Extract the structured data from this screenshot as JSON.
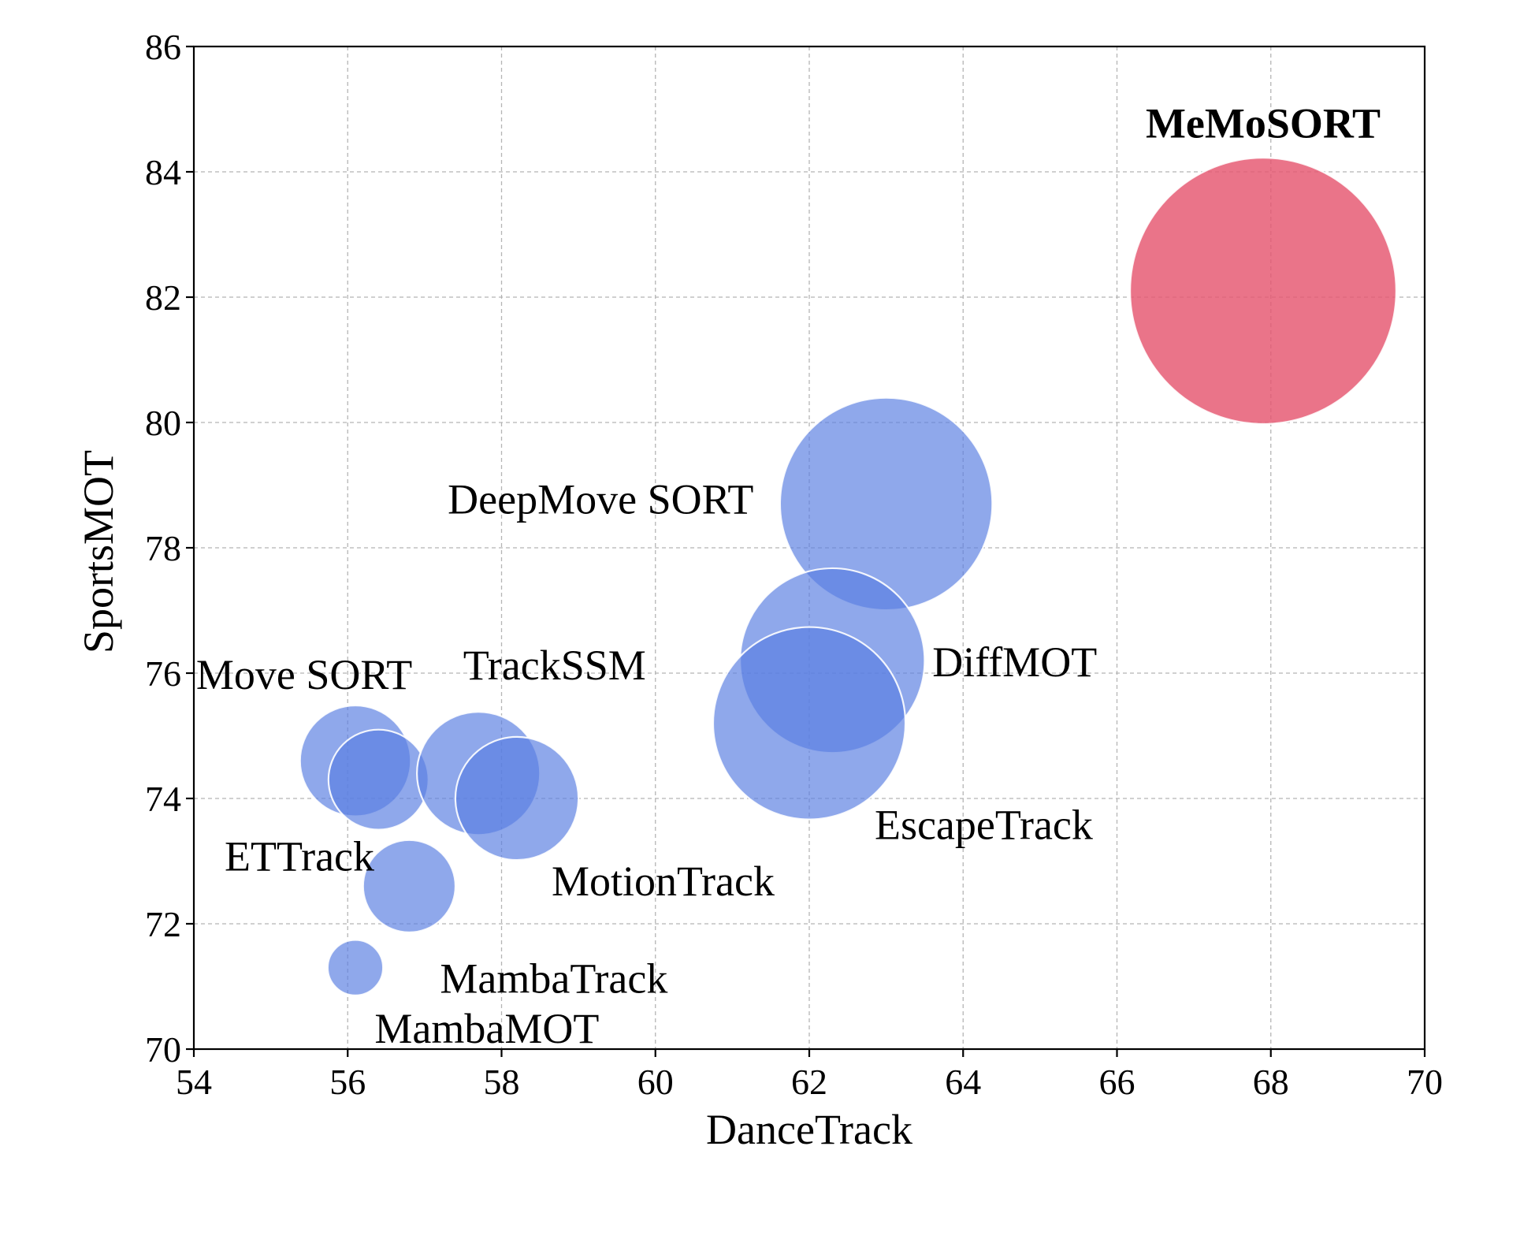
{
  "chart_data": {
    "type": "scatter",
    "title": "",
    "xlabel": "DanceTrack",
    "ylabel": "SportsMOT",
    "xlim": [
      54,
      70
    ],
    "ylim": [
      70,
      86
    ],
    "xticks": [
      "54",
      "56",
      "58",
      "60",
      "62",
      "64",
      "66",
      "68",
      "70"
    ],
    "yticks": [
      "70",
      "72",
      "74",
      "76",
      "78",
      "80",
      "82",
      "84",
      "86"
    ],
    "grid": true,
    "legend": "none",
    "marker": "bubble",
    "colors": {
      "baseline": "#5a7fe2",
      "highlight": "#e5566f"
    },
    "bubble_size_unit": "relative radius in DanceTrack axis units",
    "points": [
      {
        "label": "Move SORT",
        "x": 56.1,
        "y": 74.6,
        "size": 0.72,
        "highlight": false
      },
      {
        "label": "ETTrack",
        "x": 56.4,
        "y": 74.3,
        "size": 0.65,
        "highlight": false
      },
      {
        "label": "TrackSSM",
        "x": 57.7,
        "y": 74.4,
        "size": 0.8,
        "highlight": false
      },
      {
        "label": "MotionTrack",
        "x": 58.2,
        "y": 74.0,
        "size": 0.8,
        "highlight": false
      },
      {
        "label": "MambaTrack",
        "x": 56.8,
        "y": 72.6,
        "size": 0.6,
        "highlight": false
      },
      {
        "label": "MambaMOT",
        "x": 56.1,
        "y": 71.3,
        "size": 0.36,
        "highlight": false
      },
      {
        "label": "DeepMove SORT",
        "x": 63.0,
        "y": 78.7,
        "size": 1.38,
        "highlight": false
      },
      {
        "label": "DiffMOT",
        "x": 62.3,
        "y": 76.2,
        "size": 1.2,
        "highlight": false
      },
      {
        "label": "EscapeTrack",
        "x": 62.0,
        "y": 75.2,
        "size": 1.25,
        "highlight": false
      },
      {
        "label": "MeMoSORT",
        "x": 67.9,
        "y": 82.1,
        "size": 1.73,
        "highlight": true
      }
    ]
  }
}
